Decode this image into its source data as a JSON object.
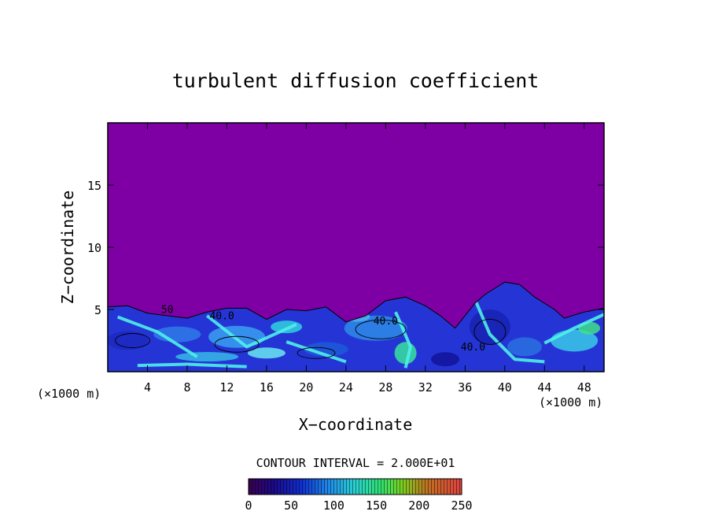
{
  "chart_data": {
    "type": "heatmap",
    "title": "turbulent diffusion coefficient",
    "xlabel": "X−coordinate",
    "ylabel": "Z−coordinate",
    "x_unit_left": "(×1000 m)",
    "x_unit_right": "(×1000 m)",
    "xlim": [
      0,
      50
    ],
    "ylim": [
      0,
      20
    ],
    "x_ticks": [
      4,
      8,
      12,
      16,
      20,
      24,
      28,
      32,
      36,
      40,
      44,
      48
    ],
    "y_ticks": [
      5,
      10,
      15
    ],
    "contour_interval_text": "CONTOUR INTERVAL = 2.000E+01",
    "contour_labels": [
      {
        "text": "40.0",
        "x": 11.5,
        "z": 4.2
      },
      {
        "text": "40.0",
        "x": 28.0,
        "z": 3.8
      },
      {
        "text": "40.0",
        "x": 36.8,
        "z": 1.7
      },
      {
        "text": "50",
        "x": 6.0,
        "z": 4.7
      }
    ],
    "colorbar": {
      "min": 0,
      "max": 250,
      "tick_values": [
        0,
        50,
        100,
        150,
        200,
        250
      ],
      "tick_labels": [
        "0",
        "50",
        "100",
        "150",
        "200",
        "250"
      ]
    },
    "background_color": "#7e00a4",
    "turbulent_layer_top_z": [
      [
        0,
        5.2
      ],
      [
        2,
        5.3
      ],
      [
        4,
        4.7
      ],
      [
        6,
        4.5
      ],
      [
        8,
        4.3
      ],
      [
        10,
        4.8
      ],
      [
        12,
        5.1
      ],
      [
        14,
        5.1
      ],
      [
        16,
        4.2
      ],
      [
        18,
        5.0
      ],
      [
        20,
        4.9
      ],
      [
        22,
        5.2
      ],
      [
        24,
        4.0
      ],
      [
        26,
        4.5
      ],
      [
        28,
        5.7
      ],
      [
        30,
        6.0
      ],
      [
        32,
        5.3
      ],
      [
        33.5,
        4.5
      ],
      [
        35,
        3.5
      ],
      [
        37,
        5.5
      ],
      [
        38,
        6.2
      ],
      [
        40,
        7.2
      ],
      [
        41.5,
        7.0
      ],
      [
        43,
        6.0
      ],
      [
        45,
        5.0
      ],
      [
        46,
        4.3
      ],
      [
        48,
        4.8
      ],
      [
        50,
        5.1
      ]
    ]
  }
}
